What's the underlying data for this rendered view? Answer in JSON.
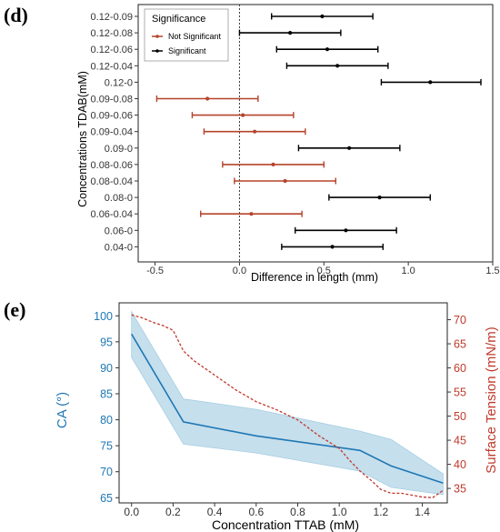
{
  "chart_data": [
    {
      "panel": "(d)",
      "type": "scatter",
      "xlabel": "Difference in length (mm)",
      "ylabel": "Concentrations TDAB(mM)",
      "xlim": [
        -0.6,
        1.5
      ],
      "xticks": [
        -0.5,
        0.0,
        0.5,
        1.0,
        1.5
      ],
      "xtick_labels": [
        "-0.5",
        "0.0",
        "0.5",
        "1.0",
        "1.5"
      ],
      "reference_line_x": 0,
      "legend": {
        "title": "Significance",
        "placement": "top-left",
        "entries": [
          {
            "label": "Not Significant",
            "color": "#b5432a"
          },
          {
            "label": "Significant",
            "color": "#000000"
          }
        ]
      },
      "categories": [
        "0.12-0.09",
        "0.12-0.08",
        "0.12-0.06",
        "0.12-0.04",
        "0.12-0",
        "0.09-0.08",
        "0.09-0.06",
        "0.09-0.04",
        "0.09-0",
        "0.08-0.06",
        "0.08-0.04",
        "0.08-0",
        "0.06-0.04",
        "0.06-0",
        "0.04-0"
      ],
      "estimates": [
        0.49,
        0.3,
        0.52,
        0.58,
        1.13,
        -0.19,
        0.02,
        0.09,
        0.65,
        0.2,
        0.27,
        0.83,
        0.07,
        0.63,
        0.55
      ],
      "lower": [
        0.19,
        0.0,
        0.22,
        0.28,
        0.84,
        -0.49,
        -0.28,
        -0.21,
        0.35,
        -0.1,
        -0.03,
        0.53,
        -0.23,
        0.33,
        0.25
      ],
      "upper": [
        0.79,
        0.6,
        0.82,
        0.88,
        1.43,
        0.11,
        0.32,
        0.39,
        0.95,
        0.5,
        0.57,
        1.13,
        0.37,
        0.93,
        0.85
      ],
      "significant": [
        true,
        true,
        true,
        true,
        true,
        false,
        false,
        false,
        true,
        false,
        false,
        true,
        false,
        true,
        true
      ]
    },
    {
      "panel": "(e)",
      "type": "line",
      "xlabel": "Concentration TTAB (mM)",
      "ylabel_left": "CA (°)",
      "ylabel_right": "Surface Tension (mN/m)",
      "xlim": [
        -0.06,
        1.52
      ],
      "xticks": [
        0.0,
        0.2,
        0.4,
        0.6,
        0.8,
        1.0,
        1.2,
        1.4
      ],
      "xtick_labels": [
        "0.0",
        "0.2",
        "0.4",
        "0.6",
        "0.8",
        "1.0",
        "1.2",
        "1.4"
      ],
      "ylim_left": [
        64,
        102.5
      ],
      "yticks_left": [
        65,
        70,
        75,
        80,
        85,
        90,
        95,
        100
      ],
      "ylim_right": [
        32,
        73.5
      ],
      "yticks_right": [
        35,
        40,
        45,
        50,
        55,
        60,
        65,
        70
      ],
      "series": [
        {
          "name": "CA",
          "axis": "left",
          "color": "#1f77b4",
          "band_color": "#a6cee3",
          "x": [
            0.0,
            0.25,
            0.6,
            1.1,
            1.25,
            1.5
          ],
          "y": [
            96.5,
            79.6,
            76.9,
            74.1,
            71.1,
            67.8
          ],
          "y_lower": [
            92.0,
            75.3,
            73.6,
            70.1,
            67.0,
            65.6
          ],
          "y_upper": [
            100.8,
            84.0,
            82.0,
            77.8,
            76.2,
            69.6
          ]
        },
        {
          "name": "Surface Tension",
          "axis": "right",
          "color": "#c0392b",
          "style": "dashed",
          "x": [
            0.0,
            0.05,
            0.1,
            0.15,
            0.2,
            0.25,
            0.3,
            0.4,
            0.5,
            0.6,
            0.7,
            0.8,
            0.9,
            1.0,
            1.05,
            1.1,
            1.15,
            1.2,
            1.25,
            1.3,
            1.35,
            1.4,
            1.45,
            1.5
          ],
          "y": [
            71.0,
            70.4,
            69.5,
            68.8,
            67.8,
            63.5,
            61.5,
            58.5,
            55.5,
            53.0,
            51.3,
            49.2,
            46.0,
            43.3,
            40.8,
            38.6,
            36.8,
            34.8,
            34.0,
            34.0,
            33.6,
            33.2,
            33.1,
            34.6
          ]
        }
      ]
    }
  ]
}
